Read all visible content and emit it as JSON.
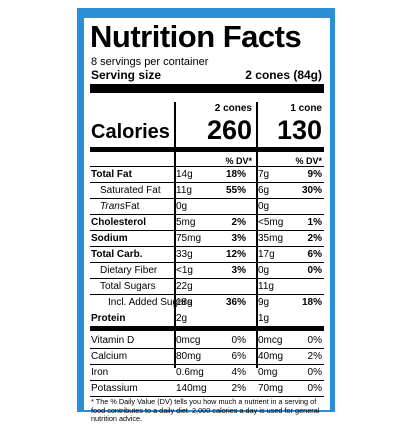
{
  "label": {
    "title": "Nutrition Facts",
    "servings_per_container": "8 servings per container",
    "serving_size_label": "Serving size",
    "serving_size_value": "2 cones (84g)",
    "columns": [
      "2 cones",
      "1 cone"
    ],
    "calories_label": "Calories",
    "calories": [
      "260",
      "130"
    ],
    "dv_header": "% DV*",
    "rows": [
      {
        "name": "Total Fat",
        "style": "bold",
        "indent": 0,
        "a1": "14g",
        "d1": "18%",
        "a2": "7g",
        "d2": "9%",
        "dvbold": true
      },
      {
        "name": "Saturated Fat",
        "style": "",
        "indent": 1,
        "a1": "11g",
        "d1": "55%",
        "a2": "6g",
        "d2": "30%",
        "dvbold": true
      },
      {
        "name": "Trans",
        "name_suffix": " Fat",
        "style": "trans",
        "indent": 1,
        "a1": "0g",
        "d1": "",
        "a2": "0g",
        "d2": "",
        "dvbold": true
      },
      {
        "name": "Cholesterol",
        "style": "bold",
        "indent": 0,
        "a1": "5mg",
        "d1": "2%",
        "a2": "<5mg",
        "d2": "1%",
        "dvbold": true
      },
      {
        "name": "Sodium",
        "style": "bold",
        "indent": 0,
        "a1": "75mg",
        "d1": "3%",
        "a2": "35mg",
        "d2": "2%",
        "dvbold": true
      },
      {
        "name": "Total Carb.",
        "style": "bold",
        "indent": 0,
        "a1": "33g",
        "d1": "12%",
        "a2": "17g",
        "d2": "6%",
        "dvbold": true
      },
      {
        "name": "Dietary Fiber",
        "style": "",
        "indent": 1,
        "a1": "<1g",
        "d1": "3%",
        "a2": "0g",
        "d2": "0%",
        "dvbold": true
      },
      {
        "name": "Total Sugars",
        "style": "",
        "indent": 1,
        "a1": "22g",
        "d1": "",
        "a2": "11g",
        "d2": "",
        "dvbold": true
      },
      {
        "name": "Incl. Added Sugars",
        "style": "",
        "indent": 2,
        "a1": "18g",
        "d1": "36%",
        "a2": "9g",
        "d2": "18%",
        "dvbold": true
      },
      {
        "name": "Protein",
        "style": "bold",
        "indent": 0,
        "a1": "2g",
        "d1": "",
        "a2": "1g",
        "d2": "",
        "dvbold": true
      },
      {
        "name": "Vitamin D",
        "style": "",
        "indent": 0,
        "a1": "0mcg",
        "d1": "0%",
        "a2": "0mcg",
        "d2": "0%",
        "dvbold": false
      },
      {
        "name": "Calcium",
        "style": "",
        "indent": 0,
        "a1": "80mg",
        "d1": "6%",
        "a2": "40mg",
        "d2": "2%",
        "dvbold": false
      },
      {
        "name": "Iron",
        "style": "",
        "indent": 0,
        "a1": "0.6mg",
        "d1": "4%",
        "a2": "0mg",
        "d2": "0%",
        "dvbold": false
      },
      {
        "name": "Potassium",
        "style": "",
        "indent": 0,
        "a1": "140mg",
        "d1": "2%",
        "a2": "70mg",
        "d2": "0%",
        "dvbold": false
      }
    ],
    "footnote": "* The % Daily Value (DV) tells you how much a nutrient in a serving of food contributes to a daily diet. 2,000 calories a day is used for general nutrition advice."
  },
  "colors": {
    "frame": "#2a8fd6",
    "text": "#000000",
    "background": "#ffffff"
  }
}
